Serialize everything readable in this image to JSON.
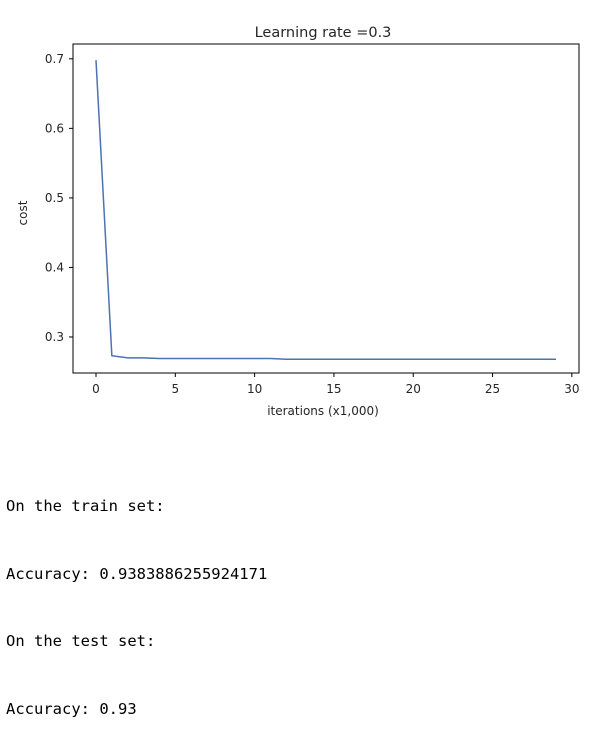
{
  "chart_data": {
    "type": "line",
    "title": "Learning rate =0.3",
    "xlabel": "iterations (x1,000)",
    "ylabel": "cost",
    "xlim": [
      -1.45,
      30.45
    ],
    "ylim": [
      0.2482,
      0.7213
    ],
    "xticks": [
      0,
      5,
      10,
      15,
      20,
      25,
      30
    ],
    "yticks": [
      0.3,
      0.4,
      0.5,
      0.6,
      0.7
    ],
    "ytick_labels": [
      "0.3",
      "0.4",
      "0.5",
      "0.6",
      "0.7"
    ],
    "grid": false,
    "line_color": "#4c72b0",
    "series": [
      {
        "x": [
          0,
          1,
          2,
          3,
          4,
          5,
          6,
          7,
          8,
          9,
          10,
          11,
          12,
          13,
          14,
          15,
          16,
          17,
          18,
          19,
          20,
          21,
          22,
          23,
          24,
          25,
          26,
          27,
          28,
          29
        ],
        "values": [
          0.698,
          0.273,
          0.27,
          0.27,
          0.269,
          0.269,
          0.269,
          0.269,
          0.269,
          0.269,
          0.269,
          0.269,
          0.268,
          0.268,
          0.268,
          0.268,
          0.268,
          0.268,
          0.268,
          0.268,
          0.268,
          0.268,
          0.268,
          0.268,
          0.268,
          0.268,
          0.268,
          0.268,
          0.268,
          0.268
        ]
      }
    ]
  },
  "output": {
    "line1": "On the train set:",
    "line2": "Accuracy: 0.9383886255924171",
    "line3": "On the test set:",
    "line4": "Accuracy: 0.93"
  }
}
